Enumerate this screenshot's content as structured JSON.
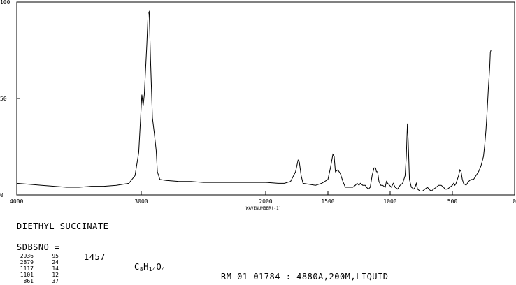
{
  "chart_data": {
    "type": "line",
    "title": "",
    "xlabel": "WAVENUMBER(-1)",
    "ylabel": "",
    "x_reversed": true,
    "xlim": [
      4000,
      0
    ],
    "ylim": [
      0,
      100
    ],
    "x_ticks": [
      {
        "value": 4000,
        "label": "4000"
      },
      {
        "value": 3000,
        "label": "3000"
      },
      {
        "value": 2000,
        "label": "2000"
      },
      {
        "value": 1500,
        "label": "1500"
      },
      {
        "value": 1000,
        "label": "1000"
      },
      {
        "value": 500,
        "label": "500"
      },
      {
        "value": 0,
        "label": "0"
      }
    ],
    "y_ticks": [
      {
        "value": 0,
        "label": "0"
      },
      {
        "value": 50,
        "label": "50"
      },
      {
        "value": 100,
        "label": "100"
      }
    ],
    "grid": false,
    "line_color": "#000000",
    "series": [
      {
        "values": [
          [
            4000,
            6
          ],
          [
            3900,
            5.5
          ],
          [
            3800,
            5
          ],
          [
            3700,
            4.5
          ],
          [
            3600,
            4
          ],
          [
            3500,
            4
          ],
          [
            3400,
            4.5
          ],
          [
            3300,
            4.5
          ],
          [
            3200,
            5
          ],
          [
            3100,
            6
          ],
          [
            3050,
            10
          ],
          [
            3020,
            22
          ],
          [
            3005,
            40
          ],
          [
            2995,
            52
          ],
          [
            2985,
            46
          ],
          [
            2975,
            52
          ],
          [
            2955,
            78
          ],
          [
            2945,
            94
          ],
          [
            2936,
            95
          ],
          [
            2925,
            70
          ],
          [
            2910,
            40
          ],
          [
            2895,
            32
          ],
          [
            2880,
            23
          ],
          [
            2870,
            12
          ],
          [
            2850,
            8
          ],
          [
            2800,
            7.5
          ],
          [
            2700,
            7
          ],
          [
            2600,
            7
          ],
          [
            2500,
            6.5
          ],
          [
            2400,
            6.5
          ],
          [
            2300,
            6.5
          ],
          [
            2200,
            6.5
          ],
          [
            2100,
            6.5
          ],
          [
            2000,
            6.5
          ],
          [
            1900,
            6
          ],
          [
            1850,
            6
          ],
          [
            1800,
            7
          ],
          [
            1760,
            12
          ],
          [
            1740,
            18
          ],
          [
            1730,
            17
          ],
          [
            1715,
            10
          ],
          [
            1700,
            6
          ],
          [
            1600,
            5
          ],
          [
            1550,
            6
          ],
          [
            1500,
            8
          ],
          [
            1480,
            14
          ],
          [
            1460,
            21
          ],
          [
            1450,
            20
          ],
          [
            1440,
            12
          ],
          [
            1420,
            13
          ],
          [
            1400,
            11
          ],
          [
            1380,
            7
          ],
          [
            1360,
            4
          ],
          [
            1300,
            4
          ],
          [
            1280,
            5
          ],
          [
            1265,
            6
          ],
          [
            1250,
            5
          ],
          [
            1240,
            6
          ],
          [
            1220,
            5
          ],
          [
            1200,
            5
          ],
          [
            1190,
            4
          ],
          [
            1175,
            3
          ],
          [
            1160,
            4
          ],
          [
            1145,
            10
          ],
          [
            1130,
            14
          ],
          [
            1117,
            14
          ],
          [
            1110,
            12
          ],
          [
            1101,
            12
          ],
          [
            1090,
            7
          ],
          [
            1075,
            5
          ],
          [
            1060,
            5
          ],
          [
            1040,
            4
          ],
          [
            1030,
            7
          ],
          [
            1020,
            6
          ],
          [
            1005,
            5
          ],
          [
            990,
            4
          ],
          [
            975,
            6
          ],
          [
            960,
            4
          ],
          [
            940,
            3
          ],
          [
            920,
            5
          ],
          [
            900,
            6
          ],
          [
            880,
            10
          ],
          [
            870,
            20
          ],
          [
            861,
            37
          ],
          [
            855,
            28
          ],
          [
            845,
            8
          ],
          [
            830,
            4
          ],
          [
            810,
            3
          ],
          [
            800,
            4
          ],
          [
            790,
            6
          ],
          [
            780,
            3
          ],
          [
            760,
            2
          ],
          [
            740,
            2
          ],
          [
            720,
            3
          ],
          [
            700,
            4
          ],
          [
            690,
            3
          ],
          [
            670,
            2
          ],
          [
            650,
            3
          ],
          [
            630,
            4
          ],
          [
            610,
            5
          ],
          [
            590,
            5
          ],
          [
            570,
            4
          ],
          [
            560,
            3
          ],
          [
            540,
            3
          ],
          [
            520,
            4
          ],
          [
            500,
            5
          ],
          [
            490,
            6
          ],
          [
            480,
            5
          ],
          [
            470,
            6
          ],
          [
            450,
            10
          ],
          [
            440,
            13
          ],
          [
            430,
            12
          ],
          [
            420,
            8
          ],
          [
            410,
            6
          ],
          [
            390,
            5
          ],
          [
            370,
            7
          ],
          [
            350,
            8
          ],
          [
            330,
            8
          ],
          [
            310,
            10
          ],
          [
            290,
            12
          ],
          [
            270,
            15
          ],
          [
            250,
            20
          ],
          [
            240,
            26
          ],
          [
            230,
            34
          ],
          [
            220,
            44
          ],
          [
            210,
            56
          ],
          [
            200,
            66
          ],
          [
            195,
            74
          ],
          [
            190,
            75
          ]
        ]
      }
    ]
  },
  "compound": {
    "name": "DIETHYL SUCCINATE",
    "sdbs_label": "SDBSNO =",
    "sdbs_number": "1457",
    "formula": {
      "c": "C",
      "c_count": "8",
      "h": "H",
      "h_count": "14",
      "o": "O",
      "o_count": "4"
    },
    "measurement": "RM-01-01784 : 4880A,200M,LIQUID"
  },
  "peak_table": [
    {
      "wavenumber": "2936",
      "intensity": "95"
    },
    {
      "wavenumber": "2879",
      "intensity": "24"
    },
    {
      "wavenumber": "1117",
      "intensity": "14"
    },
    {
      "wavenumber": "1101",
      "intensity": "12"
    },
    {
      "wavenumber": "861",
      "intensity": "37"
    }
  ]
}
